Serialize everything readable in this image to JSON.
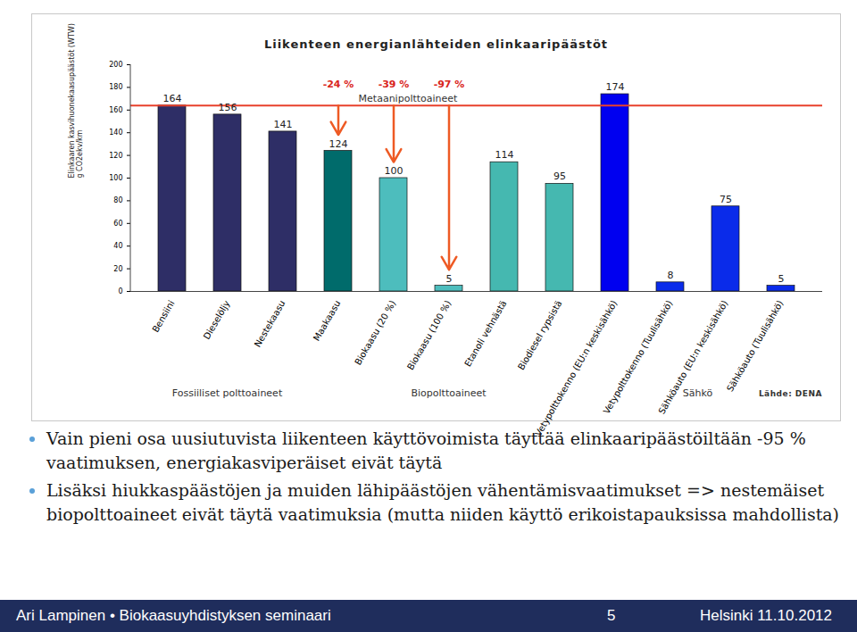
{
  "chart_data": {
    "type": "bar",
    "title": "Liikenteen energianlähteiden elinkaaripäästöt",
    "y_label": "Elinkaaren kasvihuonekaasupäästöt (WTW)\ng CO2ekv/km",
    "categories": [
      "Bensiini",
      "Dieselöljy",
      "Nestekaasu",
      "Maakaasu",
      "Biokaasu (20 %)",
      "Biokaasu (100 %)",
      "Etanoli vehnästä",
      "Biodiesel rypsistä",
      "Vetypolttokenno (EU:n keskisähkö)",
      "Vetypolttokenno (Tuulisähkö)",
      "Sähköauto (EU:n keskisähkö)",
      "Sähköauto (Tuulisähkö)"
    ],
    "values": [
      164,
      156,
      141,
      124,
      100,
      5,
      114,
      95,
      174,
      8,
      75,
      5
    ],
    "colors": [
      "#2e2e66",
      "#2e2e66",
      "#2e2e66",
      "#006b6b",
      "#4dbdbd",
      "#4dbdbd",
      "#45b8b0",
      "#45b8b0",
      "#0000f0",
      "#0a2bea",
      "#0a2bea",
      "#0a2bea"
    ],
    "ylim": [
      0,
      200
    ],
    "yticks": [
      0,
      20,
      40,
      60,
      80,
      100,
      120,
      140,
      160,
      180,
      200
    ],
    "grid": false,
    "data_labels": true,
    "reference_line": {
      "value": 164,
      "color": "#e8412c"
    },
    "arrows_to": [
      "Maakaasu",
      "Biokaasu (20 %)",
      "Biokaasu (100 %)"
    ],
    "annotations": [
      {
        "text": "-24 %",
        "category": "Maakaasu"
      },
      {
        "text": "-39 %",
        "category": "Biokaasu (20 %)"
      },
      {
        "text": "-97 %",
        "category": "Biokaasu (100 %)"
      },
      {
        "text": "Metaanipolttoaineet",
        "category": "Biokaasu (20 %)"
      }
    ],
    "groups": [
      {
        "label": "Fossiiliset polttoaineet",
        "categories": [
          "Bensiini",
          "Dieselöljy",
          "Nestekaasu"
        ]
      },
      {
        "label": "Biopolttoaineet",
        "categories": [
          "Maakaasu",
          "Biokaasu (20 %)",
          "Biokaasu (100 %)",
          "Etanoli vehnästä",
          "Biodiesel rypsistä"
        ]
      },
      {
        "label": "Sähkö",
        "categories": [
          "Vetypolttokenno (EU:n keskisähkö)",
          "Vetypolttokenno (Tuulisähkö)",
          "Sähköauto (EU:n keskisähkö)",
          "Sähköauto (Tuulisähkö)"
        ]
      }
    ],
    "source": "Lähde: DENA"
  },
  "slide": {
    "bullets": [
      "Vain pieni osa uusiutuvista liikenteen käyttövoimista täyttää elinkaaripäästöiltään -95 % vaatimuksen, energiakasviperäiset eivät täytä",
      "Lisäksi hiukkaspäästöjen ja muiden lähipäästöjen vähentämisvaatimukset => nestemäiset biopolttoaineet eivät täytä vaatimuksia (mutta niiden käyttö erikoistapauksissa mahdollista)"
    ],
    "footer": {
      "author": "Ari Lampinen",
      "separator": "•",
      "event": "Biokaasuyhdistyksen seminaari",
      "page": 5,
      "place_date": "Helsinki 11.10.2012"
    }
  }
}
